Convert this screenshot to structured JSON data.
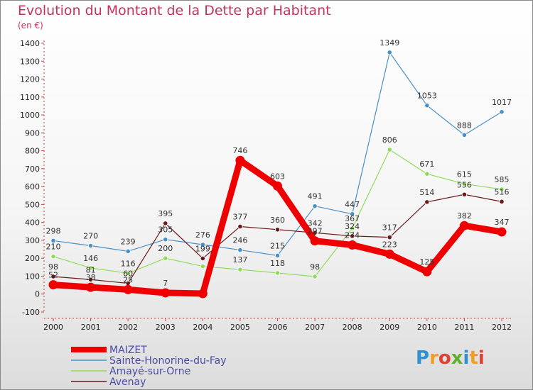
{
  "header": {
    "title": "Evolution du Montant de la Dette par Habitant",
    "unit": "(en €)"
  },
  "brand": {
    "text": "Proxiti"
  },
  "chart_data": {
    "type": "line",
    "title": "Evolution du Montant de la Dette par Habitant",
    "ylabel": "(en €)",
    "xlabel": "",
    "ylim": [
      -100,
      1400
    ],
    "yticks": [
      -100,
      0,
      100,
      200,
      300,
      400,
      500,
      600,
      700,
      800,
      900,
      1000,
      1100,
      1200,
      1300,
      1400
    ],
    "x": [
      "2000",
      "2001",
      "2002",
      "2003",
      "2004",
      "2005",
      "2006",
      "2007",
      "2008",
      "2009",
      "2010",
      "2011",
      "2012"
    ],
    "grid": false,
    "legend_position": "bottom-left",
    "series": [
      {
        "name": "MAIZET",
        "color": "#ee0000",
        "values": [
          52,
          38,
          25,
          7,
          3,
          746,
          603,
          297,
          274,
          223,
          125,
          382,
          347
        ],
        "labels": [
          "52",
          "38",
          "25",
          "7",
          "",
          "746",
          "603",
          "297",
          "274",
          "223",
          "125",
          "382",
          "347"
        ]
      },
      {
        "name": "Sainte-Honorine-du-Fay",
        "color": "#4a90c8",
        "values": [
          298,
          270,
          239,
          305,
          276,
          246,
          215,
          491,
          447,
          1349,
          1053,
          888,
          1017
        ],
        "labels": [
          "298",
          "270",
          "239",
          "305",
          "276",
          "246",
          "215",
          "491",
          "447",
          "1349",
          "1053",
          "888",
          "1017"
        ]
      },
      {
        "name": "Amayé-sur-Orne",
        "color": "#90dc58",
        "values": [
          210,
          146,
          116,
          200,
          155,
          137,
          118,
          98,
          367,
          806,
          671,
          615,
          585
        ],
        "labels": [
          "210",
          "146",
          "116",
          "200",
          "",
          "137",
          "118",
          "98",
          "367",
          "806",
          "671",
          "615",
          "585"
        ]
      },
      {
        "name": "Avenay",
        "color": "#6b1a1a",
        "values": [
          98,
          81,
          60,
          395,
          199,
          377,
          360,
          342,
          324,
          317,
          514,
          556,
          516
        ],
        "labels": [
          "98",
          "81",
          "60",
          "395",
          "199",
          "377",
          "360",
          "342",
          "324",
          "317",
          "514",
          "556",
          "516"
        ]
      }
    ]
  }
}
